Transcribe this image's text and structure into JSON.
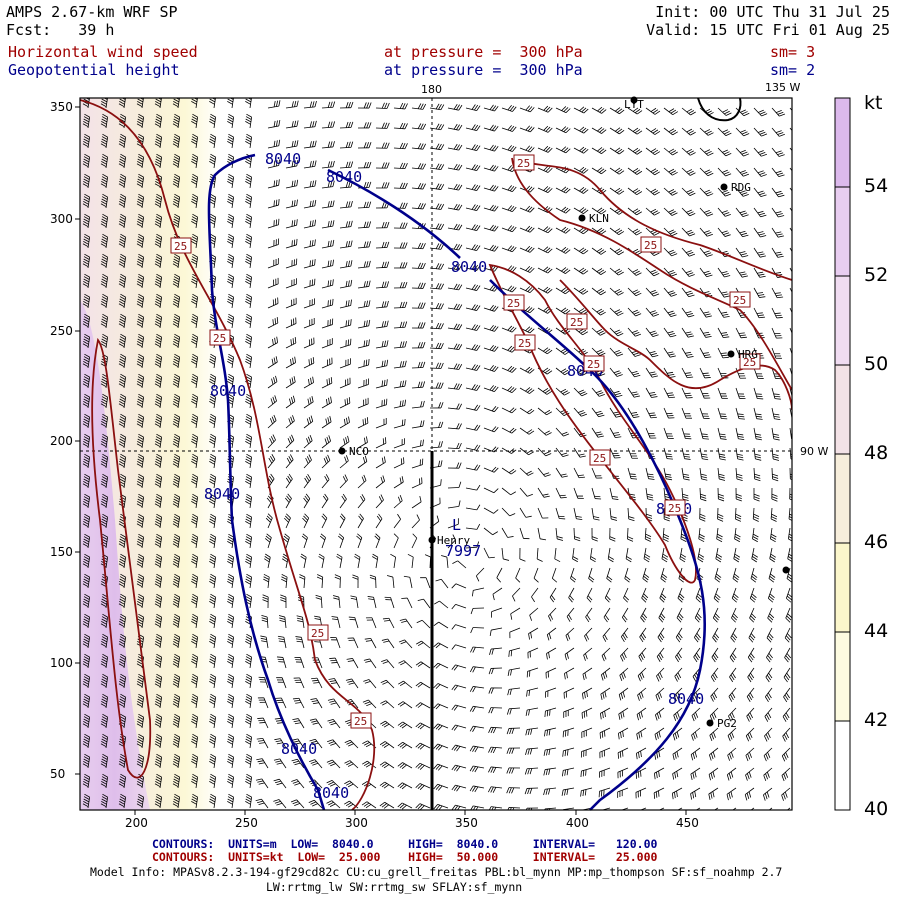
{
  "header": {
    "line1_left": "AMPS 2.67-km WRF SP",
    "line2_left": "Fcst:   39 h",
    "line1_right": "Init: 00 UTC Thu 31 Jul 25",
    "line2_right": "Valid: 15 UTC Fri 01 Aug 25",
    "field1_name": "Horizontal wind speed",
    "field1_level": "at pressure =  300 hPa",
    "field1_sm": "sm= 3",
    "field2_name": "Geopotential height",
    "field2_level": "at pressure =  300 hPa",
    "field2_sm": "sm= 2"
  },
  "map": {
    "x_ticks": [
      "200",
      "250",
      "300",
      "350",
      "400",
      "450"
    ],
    "y_ticks": [
      "350",
      "300",
      "250",
      "200",
      "150",
      "100",
      "50"
    ],
    "lon_labels": {
      "top_180": "180",
      "top_135w": "135 W",
      "right_90w": "90 W"
    },
    "stations": [
      {
        "code": "LYT"
      },
      {
        "code": "RDG"
      },
      {
        "code": "KLN"
      },
      {
        "code": "HRG"
      },
      {
        "code": "NCO"
      },
      {
        "code": "Henry"
      },
      {
        "code": "PG2"
      }
    ],
    "low_label": "L",
    "low_value": "7997",
    "height_contour_label": "8040",
    "wind_contour_label": "25"
  },
  "colorbar": {
    "unit": "kt",
    "labels": [
      "54",
      "52",
      "50",
      "48",
      "46",
      "44",
      "42",
      "40"
    ],
    "colors": [
      "#dcb9ec",
      "#e8cdf0",
      "#f0dcf1",
      "#f3e2e6",
      "#f7eedb",
      "#fbf6cb",
      "#fdfbe0",
      "#ffffff"
    ]
  },
  "footer": {
    "contours1": "CONTOURS:  UNITS=m  LOW=  8040.0     HIGH=  8040.0     INTERVAL=   120.00",
    "contours2": "CONTOURS:  UNITS=kt  LOW=  25.000    HIGH=  50.000     INTERVAL=   25.000",
    "model_info1": "Model Info: MPASv8.2.3-194-gf29cd82c CU:cu_grell_freitas PBL:bl_mynn MP:mp_thompson SF:sf_noahmp 2.7",
    "model_info2": "LW:rrtmg_lw SW:rrtmg_sw SFLAY:sf_mynn"
  }
}
